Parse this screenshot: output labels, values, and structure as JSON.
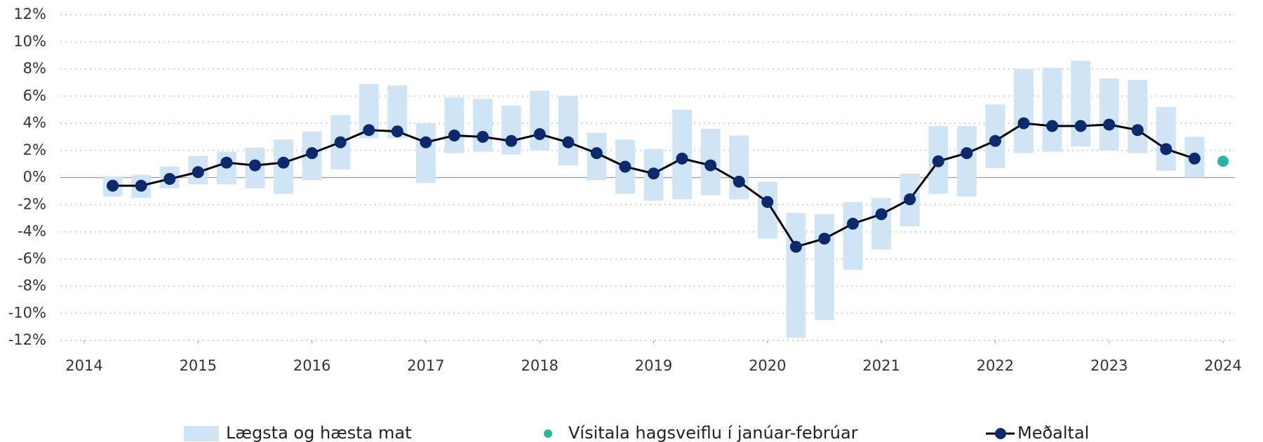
{
  "chart_data": {
    "type": "line",
    "x": [
      2014.25,
      2014.5,
      2014.75,
      2015,
      2015.25,
      2015.5,
      2015.75,
      2016,
      2016.25,
      2016.5,
      2016.75,
      2017,
      2017.25,
      2017.5,
      2017.75,
      2018,
      2018.25,
      2018.5,
      2018.75,
      2019,
      2019.25,
      2019.5,
      2019.75,
      2020,
      2020.25,
      2020.5,
      2020.75,
      2021,
      2021.25,
      2021.5,
      2021.75,
      2022,
      2022.25,
      2022.5,
      2022.75,
      2023,
      2023.25,
      2023.5,
      2023.75
    ],
    "range": {
      "name": "Lægsta og hæsta mat",
      "color": "#cfe5f5",
      "low": [
        -1.4,
        -1.5,
        -0.8,
        -0.5,
        -0.5,
        -0.8,
        -1.2,
        -0.2,
        0.6,
        2.9,
        2.9,
        -0.4,
        1.8,
        1.9,
        1.7,
        2.0,
        0.9,
        -0.2,
        -1.2,
        -1.7,
        -1.6,
        -1.3,
        -1.6,
        -4.5,
        -11.8,
        -10.5,
        -6.8,
        -5.3,
        -3.6,
        -1.2,
        -1.4,
        0.7,
        1.8,
        1.9,
        2.3,
        2.0,
        1.8,
        0.5,
        0.0
      ],
      "high": [
        0.1,
        0.2,
        0.8,
        1.6,
        1.9,
        2.2,
        2.8,
        3.4,
        4.6,
        6.9,
        6.8,
        4.0,
        5.9,
        5.8,
        5.3,
        6.4,
        6.0,
        3.3,
        2.8,
        2.1,
        5.0,
        3.6,
        3.1,
        -0.3,
        -2.6,
        -2.7,
        -1.8,
        -1.5,
        0.3,
        3.8,
        3.8,
        5.4,
        8.0,
        8.1,
        8.6,
        7.3,
        7.2,
        5.2,
        3.0
      ]
    },
    "point": {
      "name": "Vísitala hagsveiflu í janúar-febrúar",
      "color": "#2bb5a5",
      "x": 2024,
      "value": 1.2
    },
    "series": [
      {
        "name": "Meðaltal",
        "color": "#0c2a6b",
        "line_color": "#000000",
        "values": [
          -0.6,
          -0.6,
          -0.1,
          0.4,
          1.1,
          0.9,
          1.1,
          1.8,
          2.6,
          3.5,
          3.4,
          2.6,
          3.1,
          3.0,
          2.7,
          3.2,
          2.6,
          1.8,
          0.8,
          0.3,
          1.4,
          0.9,
          -0.3,
          -1.8,
          -5.1,
          -4.5,
          -3.4,
          -2.7,
          -1.6,
          1.2,
          1.8,
          2.7,
          4.0,
          3.8,
          3.8,
          3.9,
          3.5,
          2.1,
          1.4
        ]
      }
    ],
    "xlim": [
      2013.9,
      2024.2
    ],
    "xticks": [
      2014,
      2015,
      2016,
      2017,
      2018,
      2019,
      2020,
      2021,
      2022,
      2023,
      2024
    ],
    "ylim": [
      -12,
      12
    ],
    "yticks": [
      {
        "value": -12,
        "label": "-12%"
      },
      {
        "value": -10,
        "label": "-10%"
      },
      {
        "value": -8,
        "label": "-8%"
      },
      {
        "value": -6,
        "label": "-6%"
      },
      {
        "value": -4,
        "label": "-4%"
      },
      {
        "value": -2,
        "label": "-2%"
      },
      {
        "value": 0,
        "label": "0%"
      },
      {
        "value": 2,
        "label": "2%"
      },
      {
        "value": 4,
        "label": "4%"
      },
      {
        "value": 6,
        "label": "6%"
      },
      {
        "value": 8,
        "label": "8%"
      },
      {
        "value": 10,
        "label": "10%"
      },
      {
        "value": 12,
        "label": "12%"
      }
    ],
    "grid": true
  }
}
